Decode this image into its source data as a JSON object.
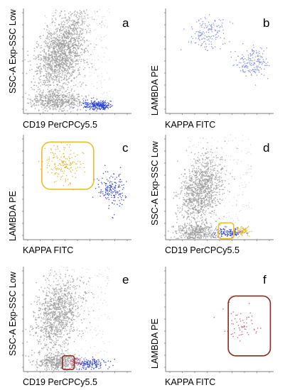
{
  "figure": {
    "colors": {
      "gray": "#9a9a9a",
      "blue": "#2a3fd6",
      "lightblue": "#7d8fe6",
      "yellow": "#e0b21f",
      "red": "#c3506a",
      "gate_yellow": "#e8c02a",
      "gate_red": "#8a2a1c"
    }
  },
  "chart_data": [
    {
      "id": "a",
      "type": "scatter",
      "letter": "a",
      "xlabel": "CD19 PerCPCy5.5",
      "ylabel": "SSC-A Exp-SSC Low",
      "series": [
        {
          "name": "",
          "color": "gray",
          "values": [
            [
              0.35,
              0.58
            ],
            [
              0.3,
              0.4
            ],
            [
              0.45,
              0.78
            ],
            [
              0.55,
              0.93
            ],
            [
              0.3,
              0.12
            ]
          ]
        },
        {
          "name": "",
          "color": "blue",
          "values": [
            [
              0.65,
              0.08
            ],
            [
              0.72,
              0.07
            ]
          ]
        }
      ],
      "gates": []
    },
    {
      "id": "b",
      "type": "scatter",
      "letter": "b",
      "xlabel": "KAPPA FITC",
      "ylabel": "LAMBDA PE",
      "series": [
        {
          "name": "",
          "color": "lightblue",
          "values": [
            [
              0.38,
              0.76
            ],
            [
              0.8,
              0.48
            ]
          ]
        }
      ],
      "gates": []
    },
    {
      "id": "c",
      "type": "scatter",
      "letter": "c",
      "xlabel": "KAPPA FITC",
      "ylabel": "LAMBDA PE",
      "series": [
        {
          "name": "",
          "color": "yellow",
          "values": [
            [
              0.37,
              0.72
            ]
          ]
        },
        {
          "name": "",
          "color": "blue",
          "values": [
            [
              0.82,
              0.48
            ]
          ]
        }
      ],
      "gates": [
        {
          "color": "gate_yellow",
          "shape": "rounded-rect",
          "region": "upper-left"
        }
      ]
    },
    {
      "id": "d",
      "type": "scatter",
      "letter": "d",
      "xlabel": "CD19 PerCPCy5.5",
      "ylabel": "SSC-A Exp-SSC Low",
      "series": [
        {
          "name": "",
          "color": "gray",
          "values": [
            [
              0.33,
              0.48
            ],
            [
              0.3,
              0.07
            ]
          ]
        },
        {
          "name": "",
          "color": "blue",
          "values": [
            [
              0.6,
              0.07
            ]
          ]
        },
        {
          "name": "",
          "color": "yellow",
          "values": [
            [
              0.7,
              0.08
            ]
          ]
        }
      ],
      "gates": [
        {
          "color": "gate_yellow",
          "shape": "rounded-rect",
          "region": "bottom-center"
        }
      ]
    },
    {
      "id": "e",
      "type": "scatter",
      "letter": "e",
      "xlabel": "CD19 PerCPCy5.5",
      "ylabel": "SSC-A Exp-SSC Low",
      "series": [
        {
          "name": "",
          "color": "gray",
          "values": [
            [
              0.32,
              0.55
            ],
            [
              0.3,
              0.09
            ]
          ]
        },
        {
          "name": "",
          "color": "blue",
          "values": [
            [
              0.62,
              0.08
            ]
          ]
        },
        {
          "name": "",
          "color": "red",
          "values": [
            [
              0.48,
              0.09
            ]
          ]
        }
      ],
      "gates": [
        {
          "color": "gate_red",
          "shape": "rounded-rect",
          "region": "bottom-center"
        }
      ]
    },
    {
      "id": "f",
      "type": "scatter",
      "letter": "f",
      "xlabel": "KAPPA FITC",
      "ylabel": "LAMBDA PE",
      "series": [
        {
          "name": "",
          "color": "red",
          "values": [
            [
              0.7,
              0.45
            ]
          ]
        }
      ],
      "gates": [
        {
          "color": "gate_red",
          "shape": "rounded-rect",
          "region": "right"
        }
      ]
    }
  ]
}
